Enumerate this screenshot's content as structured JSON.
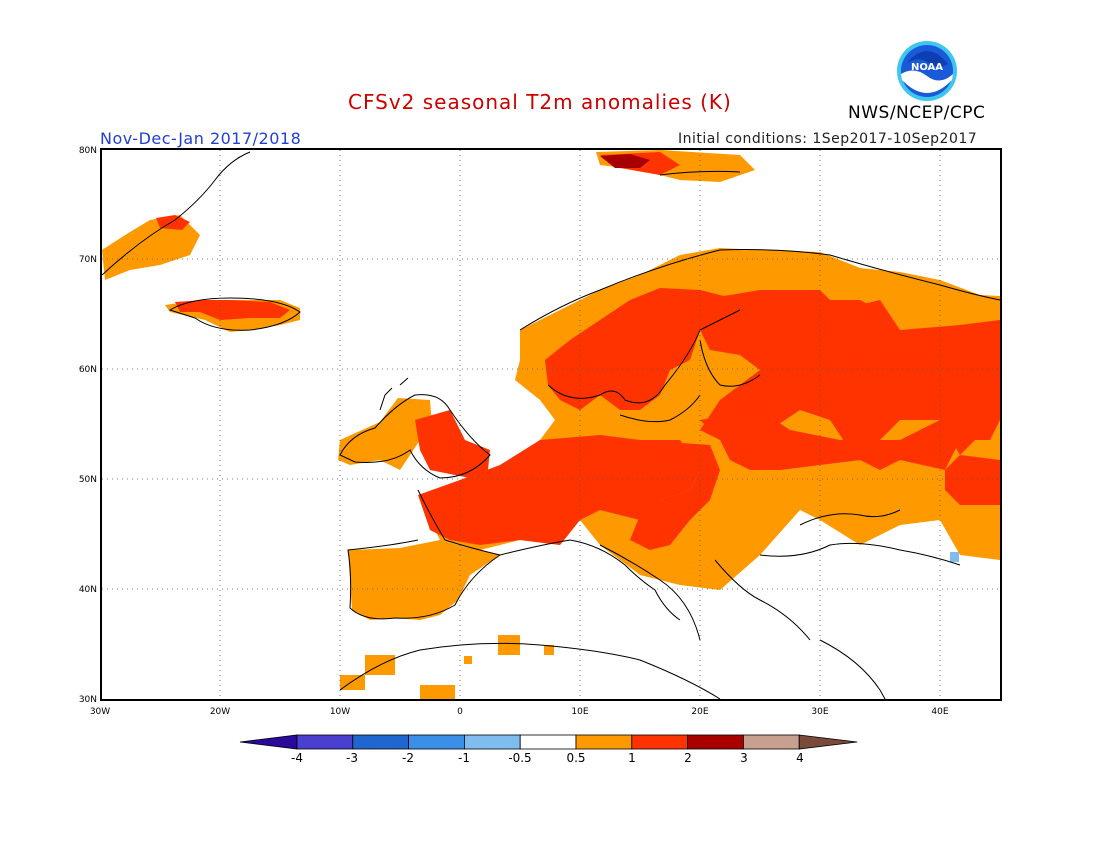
{
  "title": "CFSv2 seasonal T2m anomalies (K)",
  "period": "Nov-Dec-Jan 2017/2018",
  "initial_conditions": "Initial conditions: 1Sep2017-10Sep2017",
  "agency": "NWS/NCEP/CPC",
  "logo": {
    "text": "NOAA",
    "icon": "noaa-logo-icon"
  },
  "map": {
    "region": "Europe",
    "lon_range": [
      -30,
      45
    ],
    "lat_range": [
      30,
      80
    ],
    "lat_labels": [
      "30N",
      "40N",
      "50N",
      "60N",
      "70N",
      "80N"
    ],
    "lon_labels": [
      "30W",
      "20W",
      "10W",
      "0",
      "10E",
      "20E",
      "30E",
      "40E"
    ],
    "grid": "dotted"
  },
  "colorbar": {
    "labels": [
      "-4",
      "-3",
      "-2",
      "-1",
      "-0.5",
      "0.5",
      "1",
      "2",
      "3",
      "4"
    ],
    "colors": [
      "#2a0a9a",
      "#4a3fcf",
      "#1f66cf",
      "#3c8fe8",
      "#7fbcf0",
      "#ffffff",
      "#ff9900",
      "#ff3300",
      "#a80000",
      "#c8a090",
      "#7a4a3a"
    ]
  },
  "colors": {
    "anomaly_0_5_to_1": "#ff9900",
    "anomaly_1_to_2": "#ff3300",
    "anomaly_2_to_3": "#a80000",
    "anomaly_neg_0_5_to_neg_1": "#7fbcf0",
    "title": "#cc0000",
    "period": "#1f3fd6"
  }
}
